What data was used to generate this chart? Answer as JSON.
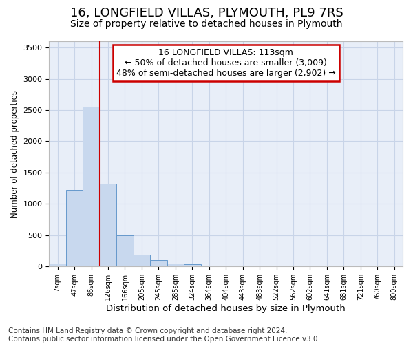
{
  "title": "16, LONGFIELD VILLAS, PLYMOUTH, PL9 7RS",
  "subtitle": "Size of property relative to detached houses in Plymouth",
  "xlabel": "Distribution of detached houses by size in Plymouth",
  "ylabel": "Number of detached properties",
  "bin_labels": [
    "7sqm",
    "47sqm",
    "86sqm",
    "126sqm",
    "166sqm",
    "205sqm",
    "245sqm",
    "285sqm",
    "324sqm",
    "364sqm",
    "404sqm",
    "443sqm",
    "483sqm",
    "522sqm",
    "562sqm",
    "602sqm",
    "641sqm",
    "681sqm",
    "721sqm",
    "760sqm",
    "800sqm"
  ],
  "bar_heights": [
    50,
    1220,
    2560,
    1320,
    500,
    190,
    100,
    50,
    30,
    0,
    0,
    0,
    0,
    0,
    0,
    0,
    0,
    0,
    0,
    0,
    0
  ],
  "bar_color": "#c8d8ee",
  "bar_edge_color": "#6699cc",
  "property_label": "16 LONGFIELD VILLAS: 113sqm",
  "annotation_line1": "← 50% of detached houses are smaller (3,009)",
  "annotation_line2": "48% of semi-detached houses are larger (2,902) →",
  "vline_color": "#cc0000",
  "annotation_box_color": "#cc0000",
  "ylim_max": 3600,
  "yticks": [
    0,
    500,
    1000,
    1500,
    2000,
    2500,
    3000,
    3500
  ],
  "grid_color": "#c8d4e8",
  "background_color": "#e8eef8",
  "footer_line1": "Contains HM Land Registry data © Crown copyright and database right 2024.",
  "footer_line2": "Contains public sector information licensed under the Open Government Licence v3.0.",
  "title_fontsize": 13,
  "subtitle_fontsize": 10,
  "annotation_fontsize": 9,
  "footer_fontsize": 7.5,
  "vline_bar_index": 2,
  "vline_right_edge": true
}
